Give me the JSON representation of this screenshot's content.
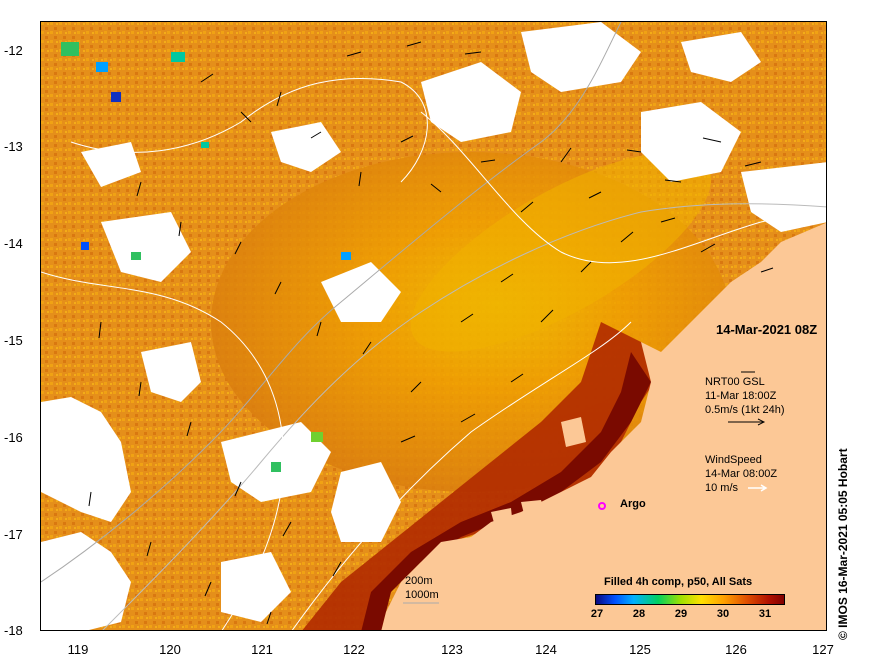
{
  "map": {
    "lon_ticks": [
      "119",
      "120",
      "121",
      "122",
      "123",
      "124",
      "125",
      "126",
      "127"
    ],
    "lat_ticks": [
      "-12",
      "-13",
      "-14",
      "-15",
      "-16",
      "-17",
      "-18"
    ],
    "date_label": "14-Mar-2021 08Z",
    "current_info": {
      "line1": "NRT00 GSL",
      "line2": "11-Mar 18:00Z",
      "line3": "0.5m/s (1kt 24h)"
    },
    "wind_info": {
      "line1": "WindSpeed",
      "line2": "14-Mar 08:00Z",
      "line3": "10 m/s"
    },
    "argo_label": "Argo",
    "depth_200": "200m",
    "depth_1000": "1000m",
    "legend_title": "Filled 4h comp, p50, All Sats",
    "colorbar_ticks": [
      "27",
      "28",
      "29",
      "30",
      "31"
    ],
    "credit": "© IMOS 16-Mar-2021 05:05 Hobart",
    "colors": {
      "land": "#fcc896",
      "cloud": "#ffffff",
      "sst_warm": "#e08a10",
      "sst_hot": "#8b0d00",
      "contour": "#ffffff",
      "argo": "#ff00ff"
    }
  }
}
